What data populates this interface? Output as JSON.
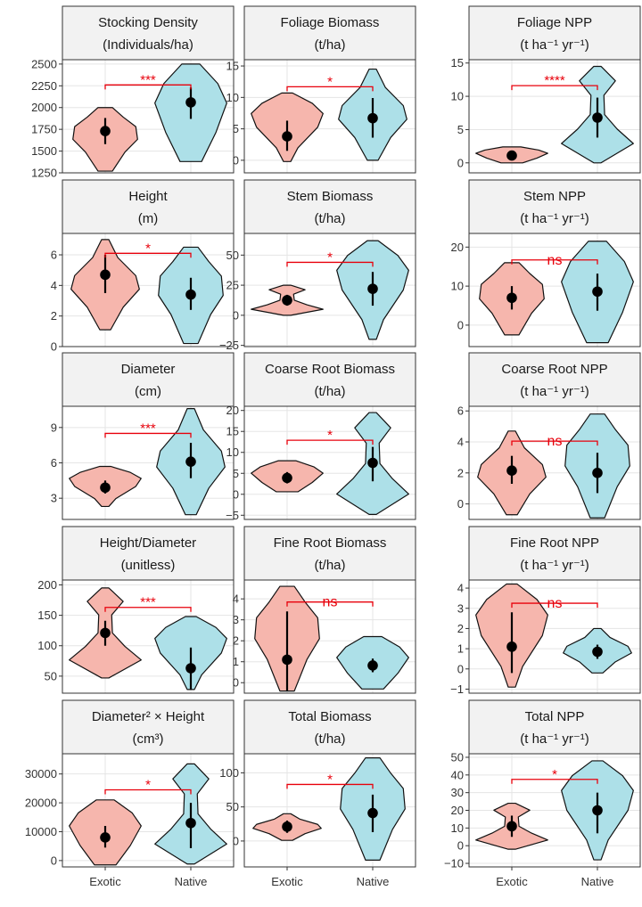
{
  "colors": {
    "exotic_fill": "#f6b6ad",
    "native_fill": "#ade0e8",
    "significance": "#e8000b",
    "strip_background": "#f2f2f2",
    "gridline": "#e5e5e5"
  },
  "chart_data": [
    {
      "type": "violin",
      "title": [
        "Stocking Density",
        "(Individuals/ha)"
      ],
      "ylim": [
        1250,
        2550
      ],
      "yticks": [
        "1250",
        "1500",
        "1750",
        "2000",
        "2250",
        "2500"
      ],
      "ytick_values": [
        1250,
        1500,
        1750,
        2000,
        2250,
        2500
      ],
      "categories": [
        "Exotic",
        "Native"
      ],
      "significance": "***",
      "bracket_y": 2260,
      "series": [
        {
          "name": "Exotic",
          "range": [
            1270,
            2000
          ],
          "mean": 1730,
          "interval": [
            1580,
            1880
          ]
        },
        {
          "name": "Native",
          "range": [
            1380,
            2500
          ],
          "mean": 2060,
          "interval": [
            1870,
            2230
          ]
        }
      ]
    },
    {
      "type": "violin",
      "title": [
        "Foliage Biomass",
        "(t/ha)"
      ],
      "ylim": [
        -2,
        16
      ],
      "yticks": [
        "0",
        "5",
        "10",
        "15"
      ],
      "ytick_values": [
        0,
        5,
        10,
        15
      ],
      "categories": [
        "Exotic",
        "Native"
      ],
      "significance": "*",
      "bracket_y": 11.7,
      "series": [
        {
          "name": "Exotic",
          "range": [
            -0.2,
            10.7
          ],
          "mean": 3.8,
          "interval": [
            1.5,
            6.3
          ]
        },
        {
          "name": "Native",
          "range": [
            0,
            14.5
          ],
          "mean": 6.7,
          "interval": [
            3.6,
            9.9
          ]
        }
      ]
    },
    {
      "type": "violin",
      "title": [
        "Foliage NPP",
        "(t ha⁻¹ yr⁻¹)"
      ],
      "ylim": [
        -1.5,
        15.5
      ],
      "yticks": [
        "0",
        "5",
        "10",
        "15"
      ],
      "ytick_values": [
        0,
        5,
        10,
        15
      ],
      "categories": [
        "Exotic",
        "Native"
      ],
      "significance": "****",
      "bracket_y": 11.6,
      "series": [
        {
          "name": "Exotic",
          "range": [
            0,
            2.4
          ],
          "mean": 1.1,
          "interval": [
            0.5,
            1.7
          ]
        },
        {
          "name": "Native",
          "range": [
            0,
            14.5
          ],
          "mean": 6.8,
          "interval": [
            3.8,
            9.8
          ]
        }
      ]
    },
    {
      "type": "violin",
      "title": [
        "Height",
        "(m)"
      ],
      "ylim": [
        0,
        7.4
      ],
      "yticks": [
        "0",
        "2",
        "4",
        "6"
      ],
      "ytick_values": [
        0,
        2,
        4,
        6
      ],
      "categories": [
        "Exotic",
        "Native"
      ],
      "significance": "*",
      "bracket_y": 6.1,
      "series": [
        {
          "name": "Exotic",
          "range": [
            1.1,
            7.0
          ],
          "mean": 4.7,
          "interval": [
            3.5,
            6.0
          ]
        },
        {
          "name": "Native",
          "range": [
            0.2,
            6.5
          ],
          "mean": 3.4,
          "interval": [
            2.4,
            4.5
          ]
        }
      ]
    },
    {
      "type": "violin",
      "title": [
        "Stem Biomass",
        "(t/ha)"
      ],
      "ylim": [
        -26,
        68
      ],
      "yticks": [
        "−25",
        "0",
        "25",
        "50"
      ],
      "ytick_values": [
        -25,
        0,
        25,
        50
      ],
      "categories": [
        "Exotic",
        "Native"
      ],
      "significance": "*",
      "bracket_y": 44,
      "series": [
        {
          "name": "Exotic",
          "range": [
            0,
            25
          ],
          "mean": 12.5,
          "interval": [
            8,
            17
          ]
        },
        {
          "name": "Native",
          "range": [
            -20,
            62
          ],
          "mean": 22,
          "interval": [
            8,
            36
          ]
        }
      ]
    },
    {
      "type": "violin",
      "title": [
        "Stem NPP",
        "(t ha⁻¹ yr⁻¹)"
      ],
      "ylim": [
        -5.5,
        23.5
      ],
      "yticks": [
        "0",
        "10",
        "20"
      ],
      "ytick_values": [
        0,
        10,
        20
      ],
      "categories": [
        "Exotic",
        "Native"
      ],
      "significance": "ns",
      "bracket_y": 16.7,
      "series": [
        {
          "name": "Exotic",
          "range": [
            -2.5,
            16
          ],
          "mean": 7,
          "interval": [
            4,
            10
          ]
        },
        {
          "name": "Native",
          "range": [
            -4.5,
            21.5
          ],
          "mean": 8.6,
          "interval": [
            3.7,
            13.2
          ]
        }
      ]
    },
    {
      "type": "violin",
      "title": [
        "Diameter",
        "(cm)"
      ],
      "ylim": [
        1.2,
        10.8
      ],
      "yticks": [
        "3",
        "6",
        "9"
      ],
      "ytick_values": [
        3,
        6,
        9
      ],
      "categories": [
        "Exotic",
        "Native"
      ],
      "significance": "***",
      "bracket_y": 8.5,
      "series": [
        {
          "name": "Exotic",
          "range": [
            2.3,
            5.7
          ],
          "mean": 3.9,
          "interval": [
            3.4,
            4.5
          ]
        },
        {
          "name": "Native",
          "range": [
            1.6,
            10.6
          ],
          "mean": 6.1,
          "interval": [
            4.7,
            7.7
          ]
        }
      ]
    },
    {
      "type": "violin",
      "title": [
        "Coarse Root Biomass",
        "(t/ha)"
      ],
      "ylim": [
        -6,
        21
      ],
      "yticks": [
        "−5",
        "0",
        "5",
        "10",
        "15",
        "20"
      ],
      "ytick_values": [
        -5,
        0,
        5,
        10,
        15,
        20
      ],
      "categories": [
        "Exotic",
        "Native"
      ],
      "significance": "*",
      "bracket_y": 12.9,
      "series": [
        {
          "name": "Exotic",
          "range": [
            0.6,
            8
          ],
          "mean": 3.9,
          "interval": [
            2.6,
            5.3
          ]
        },
        {
          "name": "Native",
          "range": [
            -4.8,
            19.5
          ],
          "mean": 7.5,
          "interval": [
            3.1,
            11.3
          ]
        }
      ]
    },
    {
      "type": "violin",
      "title": [
        "Coarse Root NPP",
        "(t ha⁻¹ yr⁻¹)"
      ],
      "ylim": [
        -1,
        6.3
      ],
      "yticks": [
        "0",
        "2",
        "4",
        "6"
      ],
      "ytick_values": [
        0,
        2,
        4,
        6
      ],
      "categories": [
        "Exotic",
        "Native"
      ],
      "significance": "ns",
      "bracket_y": 4.05,
      "series": [
        {
          "name": "Exotic",
          "range": [
            -0.7,
            4.7
          ],
          "mean": 2.15,
          "interval": [
            1.3,
            3.1
          ]
        },
        {
          "name": "Native",
          "range": [
            -0.9,
            5.8
          ],
          "mean": 2.0,
          "interval": [
            0.7,
            3.3
          ]
        }
      ]
    },
    {
      "type": "violin",
      "title": [
        "Height/Diameter",
        "(unitless)"
      ],
      "ylim": [
        22,
        208
      ],
      "yticks": [
        "50",
        "100",
        "150",
        "200"
      ],
      "ytick_values": [
        50,
        100,
        150,
        200
      ],
      "categories": [
        "Exotic",
        "Native"
      ],
      "significance": "***",
      "bracket_y": 163,
      "series": [
        {
          "name": "Exotic",
          "range": [
            47,
            195
          ],
          "mean": 121,
          "interval": [
            100,
            141
          ]
        },
        {
          "name": "Native",
          "range": [
            28,
            148
          ],
          "mean": 63,
          "interval": [
            28,
            97
          ]
        }
      ]
    },
    {
      "type": "violin",
      "title": [
        "Fine Root Biomass",
        "(t/ha)"
      ],
      "ylim": [
        -0.5,
        4.9
      ],
      "yticks": [
        "0",
        "1",
        "2",
        "3",
        "4"
      ],
      "ytick_values": [
        0,
        1,
        2,
        3,
        4
      ],
      "categories": [
        "Exotic",
        "Native"
      ],
      "significance": "ns",
      "bracket_y": 3.85,
      "series": [
        {
          "name": "Exotic",
          "range": [
            -0.4,
            4.6
          ],
          "mean": 1.1,
          "interval": [
            -0.4,
            3.4
          ]
        },
        {
          "name": "Native",
          "range": [
            -0.3,
            2.2
          ],
          "mean": 0.82,
          "interval": [
            0.5,
            1.15
          ]
        }
      ]
    },
    {
      "type": "violin",
      "title": [
        "Fine Root NPP",
        "(t ha⁻¹ yr⁻¹)"
      ],
      "ylim": [
        -1.2,
        4.4
      ],
      "yticks": [
        "−1",
        "0",
        "1",
        "2",
        "3",
        "4"
      ],
      "ytick_values": [
        -1,
        0,
        1,
        2,
        3,
        4
      ],
      "categories": [
        "Exotic",
        "Native"
      ],
      "significance": "ns",
      "bracket_y": 3.25,
      "series": [
        {
          "name": "Exotic",
          "range": [
            -0.9,
            4.2
          ],
          "mean": 1.1,
          "interval": [
            -0.2,
            2.8
          ]
        },
        {
          "name": "Native",
          "range": [
            -0.2,
            2.0
          ],
          "mean": 0.85,
          "interval": [
            0.5,
            1.2
          ]
        }
      ]
    },
    {
      "type": "violin",
      "title": [
        "Diameter² × Height",
        "(cm³)"
      ],
      "ylim": [
        -2200,
        37000
      ],
      "yticks": [
        "0",
        "10000",
        "20000",
        "30000"
      ],
      "ytick_values": [
        0,
        10000,
        20000,
        30000
      ],
      "categories": [
        "Exotic",
        "Native"
      ],
      "significance": "*",
      "bracket_y": 24500,
      "series": [
        {
          "name": "Exotic",
          "range": [
            -1500,
            21000
          ],
          "mean": 8000,
          "interval": [
            4500,
            12000
          ]
        },
        {
          "name": "Native",
          "range": [
            -1200,
            33500
          ],
          "mean": 13000,
          "interval": [
            4300,
            20000
          ]
        }
      ]
    },
    {
      "type": "violin",
      "title": [
        "Total Biomass",
        "(t/ha)"
      ],
      "ylim": [
        -38,
        128
      ],
      "yticks": [
        "0",
        "50",
        "100"
      ],
      "ytick_values": [
        0,
        50,
        100
      ],
      "categories": [
        "Exotic",
        "Native"
      ],
      "significance": "*",
      "bracket_y": 83,
      "series": [
        {
          "name": "Exotic",
          "range": [
            1,
            40
          ],
          "mean": 21,
          "interval": [
            12,
            30
          ]
        },
        {
          "name": "Native",
          "range": [
            -28,
            122
          ],
          "mean": 41,
          "interval": [
            13,
            68
          ]
        }
      ]
    },
    {
      "type": "violin",
      "title": [
        "Total NPP",
        "(t ha⁻¹ yr⁻¹)"
      ],
      "ylim": [
        -12,
        52
      ],
      "yticks": [
        "−10",
        "0",
        "10",
        "20",
        "30",
        "40",
        "50"
      ],
      "ytick_values": [
        -10,
        0,
        10,
        20,
        30,
        40,
        50
      ],
      "categories": [
        "Exotic",
        "Native"
      ],
      "significance": "*",
      "bracket_y": 37.5,
      "series": [
        {
          "name": "Exotic",
          "range": [
            -2,
            24
          ],
          "mean": 11,
          "interval": [
            5,
            17
          ]
        },
        {
          "name": "Native",
          "range": [
            -8,
            48
          ],
          "mean": 20,
          "interval": [
            7,
            30
          ]
        }
      ]
    }
  ]
}
